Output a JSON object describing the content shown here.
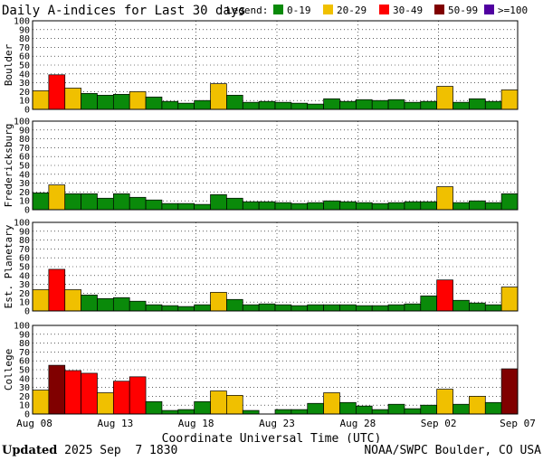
{
  "title": "Daily A-indices for Last 30 days",
  "legend": {
    "label": "Legend:",
    "items": [
      {
        "label": "0-19",
        "color": "#0a8a0a"
      },
      {
        "label": "20-29",
        "color": "#f0c000"
      },
      {
        "label": "30-49",
        "color": "#ff0000"
      },
      {
        "label": "50-99",
        "color": "#800000"
      },
      {
        "label": ">=100",
        "color": "#5000a0"
      }
    ]
  },
  "colors": {
    "bar_outline": "#000000",
    "grid": "#000000"
  },
  "footer": {
    "updated_label": "Updated",
    "updated_value": "2025 Sep  7 1830",
    "source": "NOAA/SWPC Boulder, CO USA"
  },
  "chart_data": {
    "type": "bar",
    "title": "Daily A-indices for Last 30 days",
    "xlabel": "Coordinate Universal Time (UTC)",
    "x_ticks": [
      "Aug 08",
      "Aug 13",
      "Aug 18",
      "Aug 23",
      "Aug 28",
      "Sep 02",
      "Sep 07"
    ],
    "ylim": [
      0,
      100
    ],
    "y_ticks": [
      0,
      10,
      20,
      30,
      40,
      50,
      60,
      70,
      80,
      90,
      100
    ],
    "grid": "dotted",
    "color_thresholds": [
      {
        "min": 0,
        "max": 19,
        "label": "0-19"
      },
      {
        "min": 20,
        "max": 29,
        "label": "20-29"
      },
      {
        "min": 30,
        "max": 49,
        "label": "30-49"
      },
      {
        "min": 50,
        "max": 99,
        "label": "50-99"
      },
      {
        "min": 100,
        "max": null,
        "label": ">=100"
      }
    ],
    "panels": [
      {
        "name": "Boulder",
        "values": [
          21,
          39,
          24,
          18,
          16,
          17,
          20,
          14,
          9,
          7,
          10,
          29,
          16,
          8,
          9,
          8,
          7,
          6,
          12,
          9,
          11,
          10,
          11,
          8,
          9,
          26,
          8,
          12,
          9,
          22
        ]
      },
      {
        "name": "Fredericksburg",
        "values": [
          19,
          28,
          18,
          18,
          13,
          18,
          14,
          11,
          7,
          7,
          6,
          17,
          13,
          9,
          9,
          8,
          7,
          8,
          10,
          9,
          8,
          7,
          8,
          9,
          9,
          26,
          8,
          10,
          8,
          18
        ]
      },
      {
        "name": "Est. Planetary",
        "values": [
          24,
          47,
          24,
          18,
          14,
          15,
          11,
          7,
          6,
          5,
          7,
          21,
          13,
          7,
          8,
          7,
          6,
          7,
          7,
          7,
          6,
          6,
          7,
          8,
          17,
          35,
          12,
          9,
          7,
          27
        ]
      },
      {
        "name": "College",
        "values": [
          27,
          55,
          49,
          46,
          24,
          37,
          42,
          14,
          4,
          5,
          14,
          26,
          21,
          4,
          0,
          5,
          5,
          12,
          24,
          13,
          9,
          5,
          11,
          6,
          10,
          28,
          11,
          20,
          13,
          51
        ]
      }
    ]
  }
}
